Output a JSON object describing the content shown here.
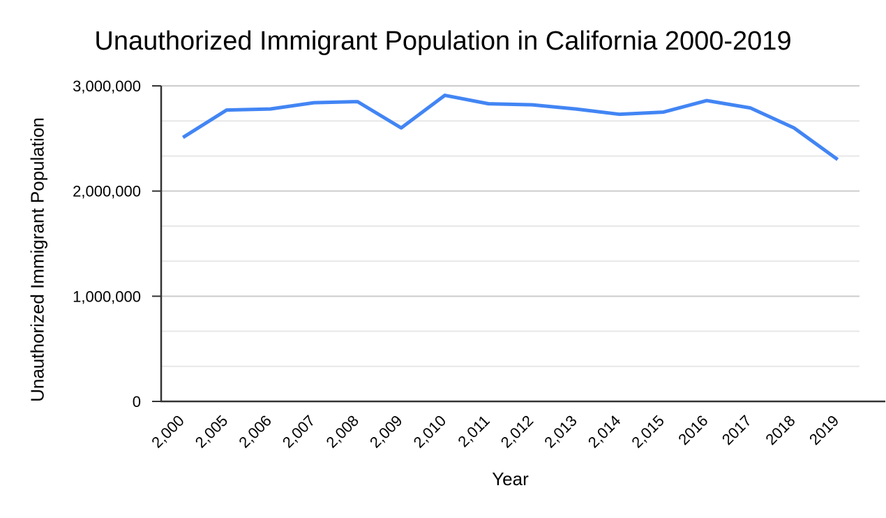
{
  "chart_data": {
    "type": "line",
    "title": "Unauthorized Immigrant Population in California 2000-2019",
    "xlabel": "Year",
    "ylabel": "Unauthorized Immigrant Population",
    "categories": [
      "2,000",
      "2,005",
      "2,006",
      "2,007",
      "2,008",
      "2,009",
      "2,010",
      "2,011",
      "2,012",
      "2,013",
      "2,014",
      "2,015",
      "2016",
      "2017",
      "2018",
      "2019"
    ],
    "values": [
      2510000,
      2770000,
      2780000,
      2840000,
      2850000,
      2600000,
      2910000,
      2830000,
      2820000,
      2780000,
      2730000,
      2750000,
      2860000,
      2790000,
      2600000,
      2300000
    ],
    "y_axis": {
      "min": 0,
      "max": 3000000,
      "major_step": 1000000,
      "minor_divisions": 3,
      "ticks": [
        {
          "value": 0,
          "label": "0"
        },
        {
          "value": 1000000,
          "label": "1,000,000"
        },
        {
          "value": 2000000,
          "label": "2,000,000"
        },
        {
          "value": 3000000,
          "label": "3,000,000"
        }
      ]
    },
    "x_label_rotation_deg": -45,
    "grid": true,
    "legend": "none",
    "colors": {
      "series": "#4285f4",
      "axis": "#333333",
      "major_gridline": "#cccccc",
      "minor_gridline": "#e7e7e7",
      "text": "#000000"
    }
  }
}
